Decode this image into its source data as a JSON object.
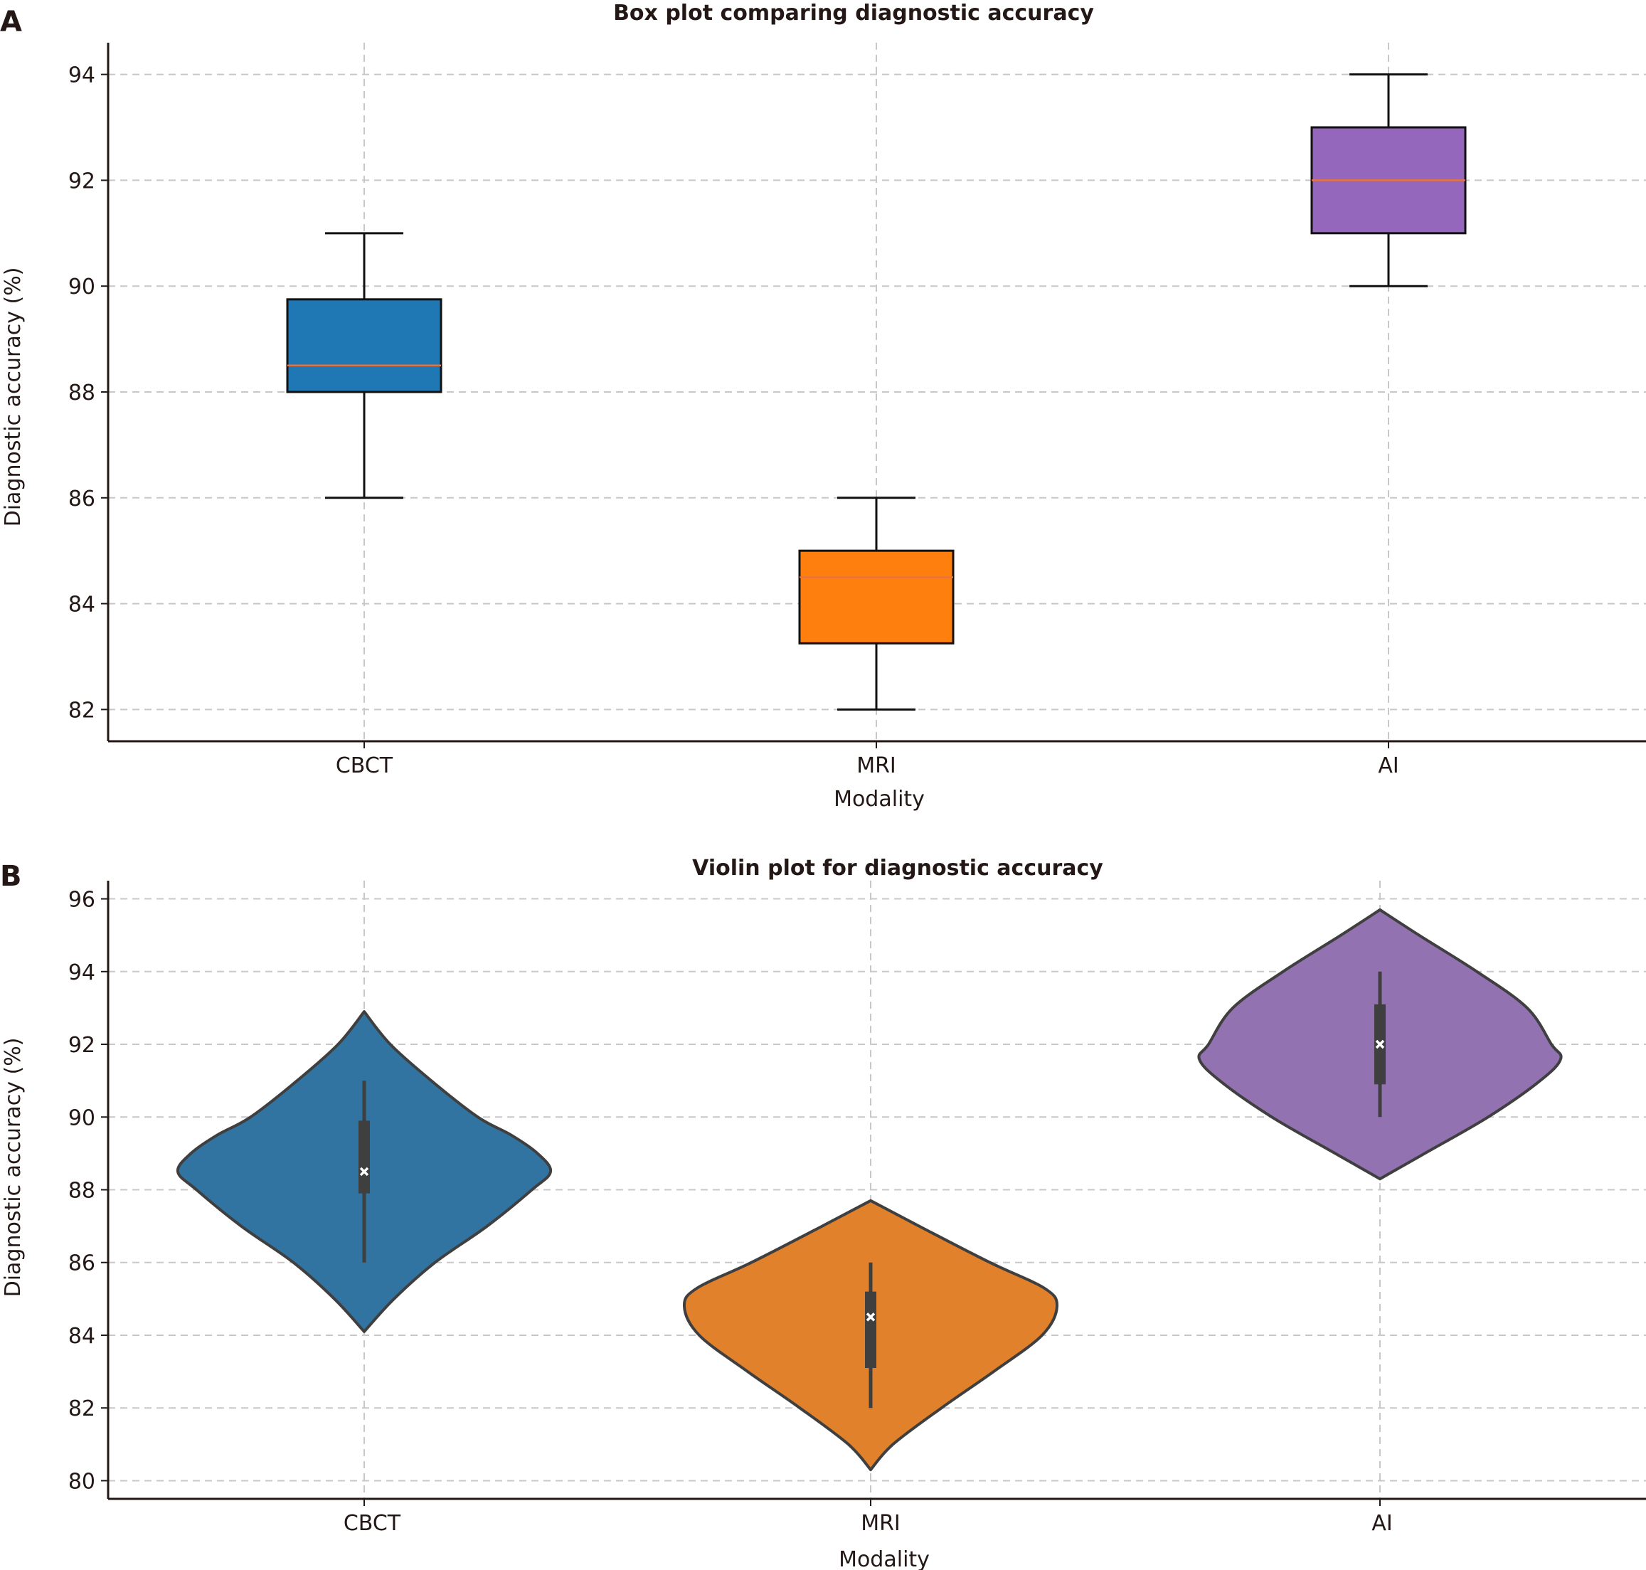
{
  "panels": [
    {
      "letter": "A",
      "title": "Box plot comparing diagnostic accuracy",
      "xlabel": "Modality",
      "ylabel": "Diagnostic accuracy (%)"
    },
    {
      "letter": "B",
      "title": "Violin plot for diagnostic accuracy",
      "xlabel": "Modality",
      "ylabel": "Diagnostic accuracy (%)"
    }
  ],
  "chart_data": [
    {
      "type": "box",
      "title": "Box plot comparing diagnostic accuracy",
      "xlabel": "Modality",
      "ylabel": "Diagnostic accuracy (%)",
      "categories": [
        "CBCT",
        "MRI",
        "AI"
      ],
      "ylim": [
        81.4,
        94.6
      ],
      "yticks": [
        82,
        84,
        86,
        88,
        90,
        92,
        94
      ],
      "grid": true,
      "boxes": [
        {
          "category": "CBCT",
          "min": 86,
          "q1": 88,
          "median": 88.5,
          "q3": 89.75,
          "max": 91,
          "color": "#1f77b4"
        },
        {
          "category": "MRI",
          "min": 82,
          "q1": 83.25,
          "median": 84.5,
          "q3": 85,
          "max": 86,
          "color": "#ff7f0e"
        },
        {
          "category": "AI",
          "min": 90,
          "q1": 91,
          "median": 92,
          "q3": 93,
          "max": 94,
          "color": "#9467bd"
        }
      ],
      "median_color": "#e8743b"
    },
    {
      "type": "violin",
      "title": "Violin plot for diagnostic accuracy",
      "xlabel": "Modality",
      "ylabel": "Diagnostic accuracy (%)",
      "categories": [
        "CBCT",
        "MRI",
        "AI"
      ],
      "ylim": [
        79.5,
        96.5
      ],
      "yticks": [
        80,
        82,
        84,
        86,
        88,
        90,
        92,
        94,
        96
      ],
      "grid": true,
      "violins": [
        {
          "category": "CBCT",
          "color": "#3274a1",
          "min": 86,
          "q1": 87.9,
          "median": 88.5,
          "q3": 89.9,
          "max": 91,
          "density": [
            [
              84.1,
              0.0
            ],
            [
              85.0,
              0.16
            ],
            [
              86.0,
              0.38
            ],
            [
              87.0,
              0.66
            ],
            [
              88.0,
              0.9
            ],
            [
              88.5,
              1.0
            ],
            [
              89.0,
              0.93
            ],
            [
              89.5,
              0.79
            ],
            [
              90.0,
              0.61
            ],
            [
              91.0,
              0.36
            ],
            [
              92.0,
              0.14
            ],
            [
              92.9,
              0.0
            ]
          ]
        },
        {
          "category": "MRI",
          "color": "#e1812c",
          "min": 82,
          "q1": 83.1,
          "median": 84.5,
          "q3": 85.2,
          "max": 86,
          "density": [
            [
              80.3,
              0.0
            ],
            [
              81.0,
              0.12
            ],
            [
              82.0,
              0.38
            ],
            [
              83.0,
              0.66
            ],
            [
              84.0,
              0.92
            ],
            [
              84.8,
              1.0
            ],
            [
              85.3,
              0.93
            ],
            [
              86.0,
              0.64
            ],
            [
              87.0,
              0.26
            ],
            [
              87.7,
              0.0
            ]
          ]
        },
        {
          "category": "AI",
          "color": "#9372b2",
          "min": 90,
          "q1": 90.9,
          "median": 92,
          "q3": 93.1,
          "max": 94,
          "density": [
            [
              88.3,
              0.0
            ],
            [
              89.0,
              0.24
            ],
            [
              90.0,
              0.58
            ],
            [
              91.0,
              0.86
            ],
            [
              91.6,
              0.97
            ],
            [
              92.0,
              0.92
            ],
            [
              93.0,
              0.79
            ],
            [
              94.0,
              0.52
            ],
            [
              95.0,
              0.21
            ],
            [
              95.7,
              0.0
            ]
          ]
        }
      ]
    }
  ]
}
